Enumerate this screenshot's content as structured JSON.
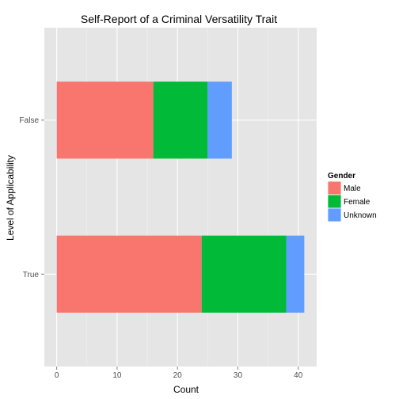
{
  "chart_data": {
    "type": "bar",
    "orientation": "horizontal",
    "stacked": true,
    "title": "Self-Report of a Criminal Versatility Trait",
    "xlabel": "Count",
    "ylabel": "Level of Applicability",
    "categories": [
      "True",
      "False"
    ],
    "series": [
      {
        "name": "Male",
        "values": [
          24,
          16
        ],
        "color": "#F8766D"
      },
      {
        "name": "Female",
        "values": [
          14,
          9
        ],
        "color": "#00BA38"
      },
      {
        "name": "Unknown",
        "values": [
          3,
          4
        ],
        "color": "#619CFF"
      }
    ],
    "xlim": [
      -2.05,
      43.05
    ],
    "xticks": [
      0,
      10,
      20,
      30,
      40
    ],
    "grid": true,
    "panel_background": "#E5E5E5",
    "legend": {
      "title": "Gender",
      "position": "right"
    }
  }
}
